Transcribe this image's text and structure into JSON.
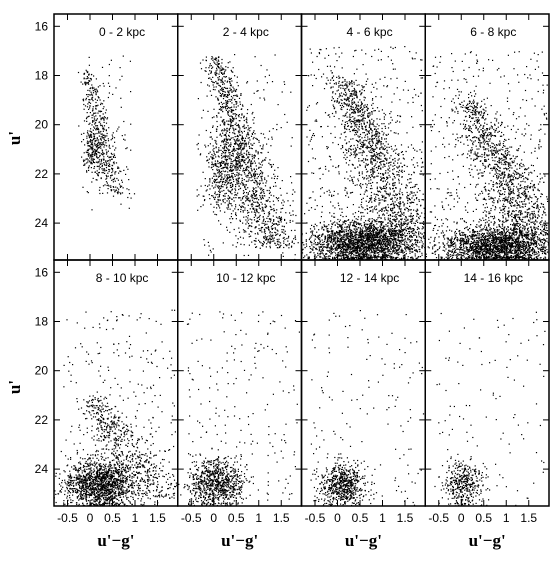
{
  "chart_data": {
    "type": "scatter",
    "layout": "2x4 grid of panels with shared axes",
    "xlabel": "u'−g'",
    "ylabel": "u'",
    "xlim": [
      -0.8,
      1.95
    ],
    "ylim": [
      25.5,
      15.5
    ],
    "y_inverted": true,
    "x_ticks": [
      -0.5,
      0,
      0.5,
      1,
      1.5
    ],
    "x_tick_labels": [
      "-0.5",
      "0",
      "0.5",
      "1",
      "1.5"
    ],
    "y_ticks": [
      16,
      18,
      20,
      22,
      24
    ],
    "y_tick_labels": [
      "16",
      "18",
      "20",
      "22",
      "24"
    ],
    "grid": false,
    "point_color": "#000000",
    "panels": [
      {
        "label": "0 - 2 kpc",
        "components": [
          {
            "kind": "band",
            "n": 420,
            "y": [
              17.8,
              22.8
            ],
            "x_at_top": -0.1,
            "x_at_bottom": 0.55,
            "sigma_x": 0.12
          },
          {
            "kind": "clump",
            "n": 180,
            "x": 0.05,
            "y": 21.0,
            "sx": 0.12,
            "sy": 0.5
          },
          {
            "kind": "field",
            "n": 80,
            "x": [
              -0.2,
              0.9
            ],
            "y": [
              17,
              23.5
            ]
          }
        ]
      },
      {
        "label": "2 - 4 kpc",
        "components": [
          {
            "kind": "band",
            "n": 1200,
            "y": [
              17.2,
              25.0
            ],
            "x_at_top": 0.0,
            "x_at_bottom": 1.3,
            "sigma_x": 0.22
          },
          {
            "kind": "clump",
            "n": 500,
            "x": 0.25,
            "y": 21.8,
            "sx": 0.22,
            "sy": 0.9
          },
          {
            "kind": "field",
            "n": 180,
            "x": [
              -0.4,
              1.8
            ],
            "y": [
              17,
              25.5
            ]
          }
        ]
      },
      {
        "label": "4 - 6 kpc",
        "components": [
          {
            "kind": "band",
            "n": 1300,
            "y": [
              18.0,
              24.5
            ],
            "x_at_top": 0.1,
            "x_at_bottom": 1.5,
            "sigma_x": 0.3
          },
          {
            "kind": "clump",
            "n": 2200,
            "x": 0.6,
            "y": 24.8,
            "sx": 0.6,
            "sy": 0.45
          },
          {
            "kind": "field",
            "n": 500,
            "x": [
              -0.7,
              1.9
            ],
            "y": [
              16.8,
              25.5
            ]
          }
        ]
      },
      {
        "label": "6 - 8 kpc",
        "components": [
          {
            "kind": "band",
            "n": 1100,
            "y": [
              19.0,
              24.5
            ],
            "x_at_top": 0.15,
            "x_at_bottom": 1.6,
            "sigma_x": 0.28
          },
          {
            "kind": "clump",
            "n": 2000,
            "x": 0.8,
            "y": 24.9,
            "sx": 0.6,
            "sy": 0.4
          },
          {
            "kind": "field",
            "n": 450,
            "x": [
              -0.7,
              1.9
            ],
            "y": [
              17,
              25.5
            ]
          }
        ]
      },
      {
        "label": "8 - 10 kpc",
        "components": [
          {
            "kind": "band",
            "n": 600,
            "y": [
              21.0,
              25.2
            ],
            "x_at_top": 0.05,
            "x_at_bottom": 1.5,
            "sigma_x": 0.28
          },
          {
            "kind": "clump",
            "n": 1400,
            "x": 0.2,
            "y": 24.6,
            "sx": 0.38,
            "sy": 0.5
          },
          {
            "kind": "field",
            "n": 260,
            "x": [
              -0.6,
              1.9
            ],
            "y": [
              17.5,
              25.5
            ]
          }
        ]
      },
      {
        "label": "10 - 12 kpc",
        "components": [
          {
            "kind": "clump",
            "n": 800,
            "x": 0.05,
            "y": 24.6,
            "sx": 0.3,
            "sy": 0.5
          },
          {
            "kind": "field",
            "n": 200,
            "x": [
              -0.6,
              1.9
            ],
            "y": [
              17.5,
              25.5
            ]
          }
        ]
      },
      {
        "label": "12 - 14 kpc",
        "components": [
          {
            "kind": "clump",
            "n": 600,
            "x": 0.1,
            "y": 24.6,
            "sx": 0.25,
            "sy": 0.45
          },
          {
            "kind": "field",
            "n": 150,
            "x": [
              -0.6,
              1.9
            ],
            "y": [
              17.5,
              25.5
            ]
          }
        ]
      },
      {
        "label": "14 - 16 kpc",
        "components": [
          {
            "kind": "clump",
            "n": 380,
            "x": 0.05,
            "y": 24.6,
            "sx": 0.22,
            "sy": 0.45
          },
          {
            "kind": "field",
            "n": 110,
            "x": [
              -0.6,
              1.9
            ],
            "y": [
              17.5,
              25.5
            ]
          }
        ]
      }
    ]
  }
}
